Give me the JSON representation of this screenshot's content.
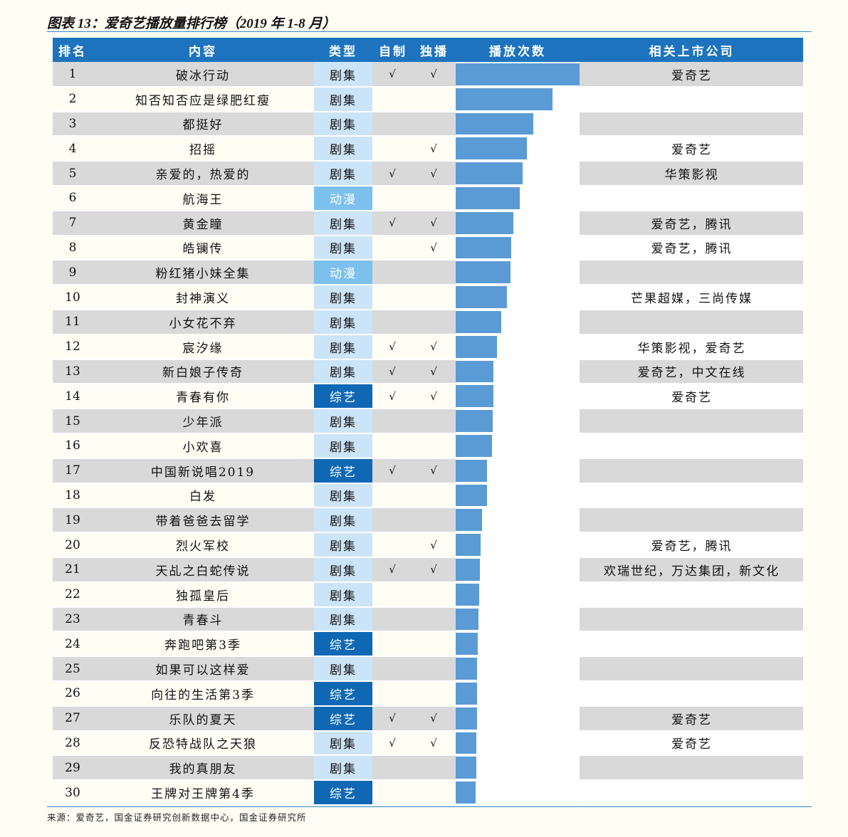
{
  "title": "图表 13：爱奇艺播放量排行榜（2019 年 1-8 月）",
  "source": "来源：爱奇艺，国金证券研究创新数据中心，国金证券研究所",
  "colors": {
    "header": "#1E73BE",
    "bar": "#5B9BD5",
    "drama": "#CCE4F7",
    "anime": "#7CC0EE",
    "variety": "#1068B4",
    "band": "#D9D9D9"
  },
  "chart_data": {
    "type": "table",
    "columns": [
      "排名",
      "内容",
      "类型",
      "自制",
      "独播",
      "播放次数",
      "相关上市公司"
    ],
    "check_mark": "√",
    "rows": [
      {
        "rank": "1",
        "title": "破冰行动",
        "type": "剧集",
        "self": true,
        "excl": true,
        "plays": 1.0,
        "company": "爱奇艺"
      },
      {
        "rank": "2",
        "title": "知否知否应是绿肥红瘦",
        "type": "剧集",
        "self": false,
        "excl": false,
        "plays": 0.78,
        "company": ""
      },
      {
        "rank": "3",
        "title": "都挺好",
        "type": "剧集",
        "self": false,
        "excl": false,
        "plays": 0.625,
        "company": ""
      },
      {
        "rank": "4",
        "title": "招摇",
        "type": "剧集",
        "self": false,
        "excl": true,
        "plays": 0.575,
        "company": "爱奇艺"
      },
      {
        "rank": "5",
        "title": "亲爱的，热爱的",
        "type": "剧集",
        "self": true,
        "excl": true,
        "plays": 0.54,
        "company": "华策影视"
      },
      {
        "rank": "6",
        "title": "航海王",
        "type": "动漫",
        "self": false,
        "excl": false,
        "plays": 0.515,
        "company": ""
      },
      {
        "rank": "7",
        "title": "黄金瞳",
        "type": "剧集",
        "self": true,
        "excl": true,
        "plays": 0.465,
        "company": "爱奇艺，腾讯"
      },
      {
        "rank": "8",
        "title": "皓镧传",
        "type": "剧集",
        "self": false,
        "excl": true,
        "plays": 0.45,
        "company": "爱奇艺，腾讯"
      },
      {
        "rank": "9",
        "title": "粉红猪小妹全集",
        "type": "动漫",
        "self": false,
        "excl": false,
        "plays": 0.445,
        "company": ""
      },
      {
        "rank": "10",
        "title": "封神演义",
        "type": "剧集",
        "self": false,
        "excl": false,
        "plays": 0.415,
        "company": "芒果超媒，三尚传媒"
      },
      {
        "rank": "11",
        "title": "小女花不弃",
        "type": "剧集",
        "self": false,
        "excl": false,
        "plays": 0.365,
        "company": ""
      },
      {
        "rank": "12",
        "title": "宸汐缘",
        "type": "剧集",
        "self": true,
        "excl": true,
        "plays": 0.335,
        "company": "华策影视，爱奇艺"
      },
      {
        "rank": "13",
        "title": "新白娘子传奇",
        "type": "剧集",
        "self": true,
        "excl": true,
        "plays": 0.305,
        "company": "爱奇艺，中文在线"
      },
      {
        "rank": "14",
        "title": "青春有你",
        "type": "综艺",
        "self": true,
        "excl": true,
        "plays": 0.305,
        "company": "爱奇艺"
      },
      {
        "rank": "15",
        "title": "少年派",
        "type": "剧集",
        "self": false,
        "excl": false,
        "plays": 0.3,
        "company": ""
      },
      {
        "rank": "16",
        "title": "小欢喜",
        "type": "剧集",
        "self": false,
        "excl": false,
        "plays": 0.295,
        "company": ""
      },
      {
        "rank": "17",
        "title": "中国新说唱2019",
        "type": "综艺",
        "self": true,
        "excl": true,
        "plays": 0.255,
        "company": ""
      },
      {
        "rank": "18",
        "title": "白发",
        "type": "剧集",
        "self": false,
        "excl": false,
        "plays": 0.25,
        "company": ""
      },
      {
        "rank": "19",
        "title": "带着爸爸去留学",
        "type": "剧集",
        "self": false,
        "excl": false,
        "plays": 0.21,
        "company": ""
      },
      {
        "rank": "20",
        "title": "烈火军校",
        "type": "剧集",
        "self": false,
        "excl": true,
        "plays": 0.2,
        "company": "爱奇艺，腾讯"
      },
      {
        "rank": "21",
        "title": "天乩之白蛇传说",
        "type": "剧集",
        "self": true,
        "excl": true,
        "plays": 0.195,
        "company": "欢瑞世纪，万达集团，新文化"
      },
      {
        "rank": "22",
        "title": "独孤皇后",
        "type": "剧集",
        "self": false,
        "excl": false,
        "plays": 0.19,
        "company": ""
      },
      {
        "rank": "23",
        "title": "青春斗",
        "type": "剧集",
        "self": false,
        "excl": false,
        "plays": 0.185,
        "company": ""
      },
      {
        "rank": "24",
        "title": "奔跑吧第3季",
        "type": "综艺",
        "self": false,
        "excl": false,
        "plays": 0.18,
        "company": ""
      },
      {
        "rank": "25",
        "title": "如果可以这样爱",
        "type": "剧集",
        "self": false,
        "excl": false,
        "plays": 0.175,
        "company": ""
      },
      {
        "rank": "26",
        "title": "向往的生活第3季",
        "type": "综艺",
        "self": false,
        "excl": false,
        "plays": 0.17,
        "company": ""
      },
      {
        "rank": "27",
        "title": "乐队的夏天",
        "type": "综艺",
        "self": true,
        "excl": true,
        "plays": 0.17,
        "company": "爱奇艺"
      },
      {
        "rank": "28",
        "title": "反恐特战队之天狼",
        "type": "剧集",
        "self": true,
        "excl": true,
        "plays": 0.165,
        "company": "爱奇艺"
      },
      {
        "rank": "29",
        "title": "我的真朋友",
        "type": "剧集",
        "self": false,
        "excl": false,
        "plays": 0.165,
        "company": ""
      },
      {
        "rank": "30",
        "title": "王牌对王牌第4季",
        "type": "综艺",
        "self": false,
        "excl": false,
        "plays": 0.16,
        "company": ""
      }
    ]
  }
}
